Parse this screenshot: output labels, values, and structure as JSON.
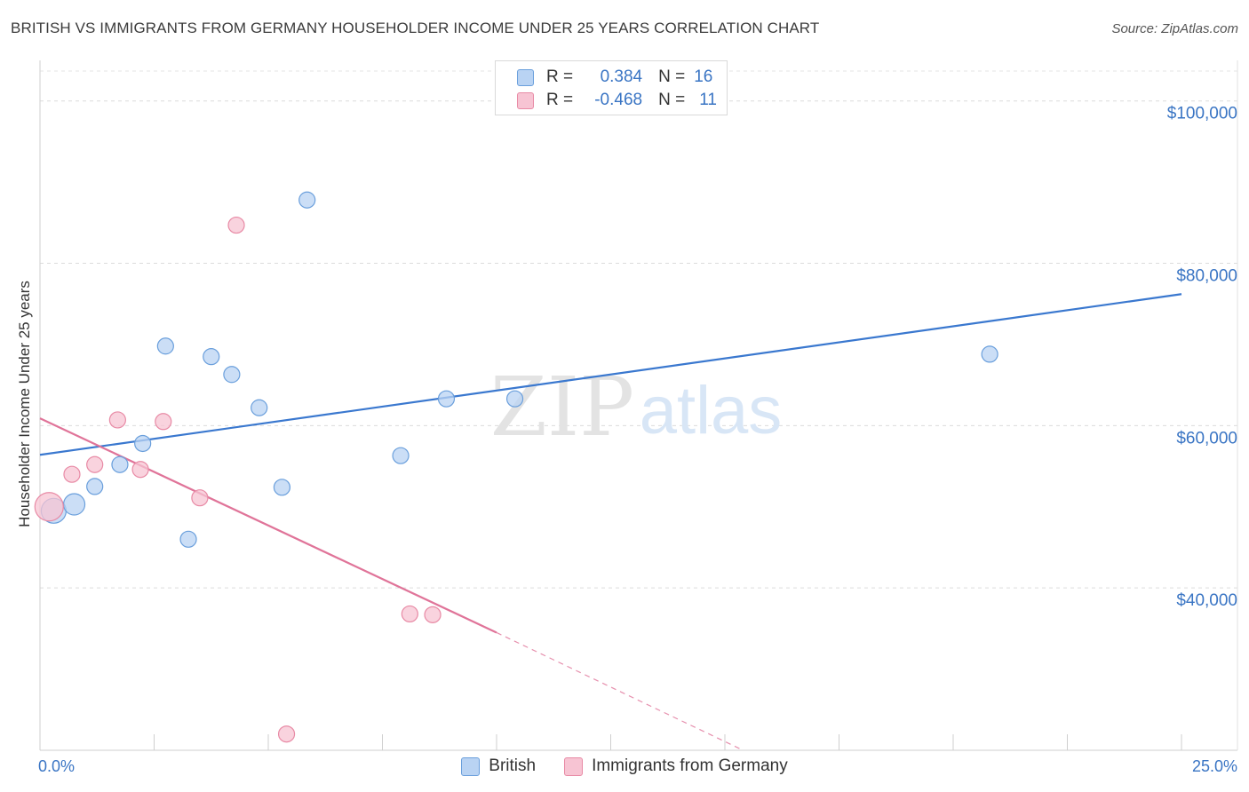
{
  "header": {
    "title": "BRITISH VS IMMIGRANTS FROM GERMANY HOUSEHOLDER INCOME UNDER 25 YEARS CORRELATION CHART",
    "source": "Source: ZipAtlas.com"
  },
  "watermark": {
    "zip": "ZIP",
    "atlas": "atlas"
  },
  "legend": {
    "rows": [
      {
        "r_label": "R =",
        "r_value": "0.384",
        "n_label": "N =",
        "n_value": "16",
        "color": "#6a9fdc",
        "fill": "#b9d3f3"
      },
      {
        "r_label": "R =",
        "r_value": "-0.468",
        "n_label": "N =",
        "n_value": "11",
        "color": "#e88aa5",
        "fill": "#f7c4d3"
      }
    ]
  },
  "chart_data": {
    "type": "scatter",
    "title": "BRITISH VS IMMIGRANTS FROM GERMANY HOUSEHOLDER INCOME UNDER 25 YEARS CORRELATION CHART",
    "xlabel": "",
    "ylabel": "Householder Income Under 25 years",
    "xlim": [
      0,
      25
    ],
    "ylim": [
      20000,
      105000
    ],
    "x_tick_labels": [
      "0.0%",
      "25.0%"
    ],
    "y_ticks": [
      {
        "value": 40000,
        "label": "$40,000"
      },
      {
        "value": 60000,
        "label": "$60,000"
      },
      {
        "value": 80000,
        "label": "$80,000"
      },
      {
        "value": 100000,
        "label": "$100,000"
      }
    ],
    "series": [
      {
        "name": "British",
        "color": "#3a78cf",
        "fill": "#b9d3f3",
        "stroke": "#6a9fdc",
        "points": [
          {
            "x": 0.3,
            "y": 49500,
            "size": 14
          },
          {
            "x": 0.75,
            "y": 50300,
            "size": 12
          },
          {
            "x": 1.2,
            "y": 52500,
            "size": 9
          },
          {
            "x": 1.75,
            "y": 55200,
            "size": 9
          },
          {
            "x": 2.25,
            "y": 57800,
            "size": 9
          },
          {
            "x": 2.75,
            "y": 69800,
            "size": 9
          },
          {
            "x": 3.25,
            "y": 46000,
            "size": 9
          },
          {
            "x": 3.75,
            "y": 68500,
            "size": 9
          },
          {
            "x": 4.2,
            "y": 66300,
            "size": 9
          },
          {
            "x": 4.8,
            "y": 62200,
            "size": 9
          },
          {
            "x": 5.3,
            "y": 52400,
            "size": 9
          },
          {
            "x": 5.85,
            "y": 87800,
            "size": 9
          },
          {
            "x": 7.9,
            "y": 56300,
            "size": 9
          },
          {
            "x": 8.9,
            "y": 63300,
            "size": 9
          },
          {
            "x": 10.4,
            "y": 63300,
            "size": 9
          },
          {
            "x": 20.8,
            "y": 68800,
            "size": 9
          }
        ],
        "trend": {
          "x0": 0,
          "y0": 56400,
          "x1": 25,
          "y1": 76200
        }
      },
      {
        "name": "Immigrants from Germany",
        "color": "#e07499",
        "fill": "#f7c4d3",
        "stroke": "#e88aa5",
        "points": [
          {
            "x": 0.2,
            "y": 50000,
            "size": 16
          },
          {
            "x": 0.7,
            "y": 54000,
            "size": 9
          },
          {
            "x": 1.2,
            "y": 55200,
            "size": 9
          },
          {
            "x": 1.7,
            "y": 60700,
            "size": 9
          },
          {
            "x": 2.2,
            "y": 54600,
            "size": 9
          },
          {
            "x": 2.7,
            "y": 60500,
            "size": 9
          },
          {
            "x": 3.5,
            "y": 51100,
            "size": 9
          },
          {
            "x": 4.3,
            "y": 84700,
            "size": 9
          },
          {
            "x": 5.4,
            "y": 22000,
            "size": 9
          },
          {
            "x": 8.1,
            "y": 36800,
            "size": 9
          },
          {
            "x": 8.6,
            "y": 36700,
            "size": 9
          }
        ],
        "trend": {
          "x0": 0,
          "y0": 60900,
          "x1": 10,
          "y1": 34500,
          "dash_to_x": 15.4,
          "dash_to_y": 20000
        }
      }
    ]
  },
  "bottom_legend": [
    {
      "label": "British",
      "fill": "#b9d3f3",
      "stroke": "#6a9fdc"
    },
    {
      "label": "Immigrants from Germany",
      "fill": "#f7c4d3",
      "stroke": "#e88aa5"
    }
  ]
}
